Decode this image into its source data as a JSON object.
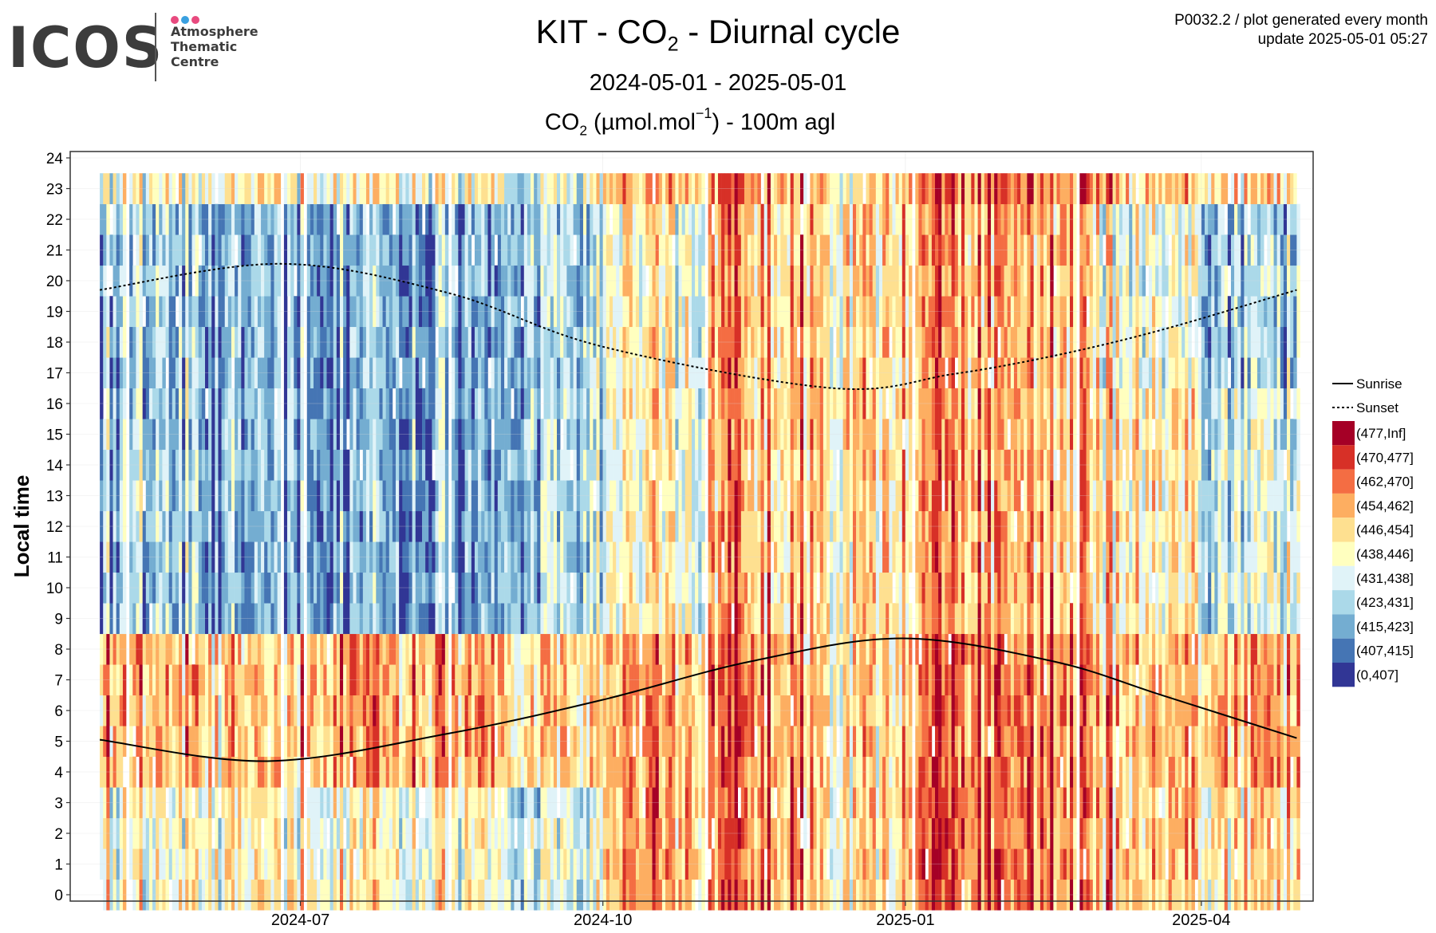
{
  "logo": {
    "word": "ICOS",
    "line1": "Atmosphere",
    "line2": "Thematic",
    "line3": "Centre",
    "dot_colors": [
      "#e84a7f",
      "#3aa0e0",
      "#e84a7f"
    ]
  },
  "header": {
    "title_pre": "KIT - CO",
    "title_sub": "2",
    "title_post": " - Diurnal cycle",
    "date_range": "2024-05-01 - 2025-05-01",
    "unit_pre": "CO",
    "unit_sub": "2",
    "unit_mid": " (µmol.mol",
    "unit_sup": "−1",
    "unit_post": ") - 100m agl"
  },
  "corner": {
    "line1": "P0032.2 / plot generated every month",
    "line2": "update  2025-05-01 05:27"
  },
  "chart_data": {
    "type": "heatmap",
    "xlabel": "",
    "ylabel": "Local time",
    "x_range": [
      "2024-04-22",
      "2025-05-05"
    ],
    "data_date_range": [
      "2024-05-01",
      "2025-04-30"
    ],
    "ylim": [
      0,
      24
    ],
    "x_ticks": [
      {
        "date": "2024-07-01",
        "label": "2024-07"
      },
      {
        "date": "2024-10-01",
        "label": "2024-10"
      },
      {
        "date": "2025-01-01",
        "label": "2025-01"
      },
      {
        "date": "2025-04-01",
        "label": "2025-04"
      }
    ],
    "y_ticks": [
      "0",
      "1",
      "2",
      "3",
      "4",
      "5",
      "6",
      "7",
      "8",
      "9",
      "10",
      "11",
      "12",
      "13",
      "14",
      "15",
      "16",
      "17",
      "18",
      "19",
      "20",
      "21",
      "22",
      "23",
      "24"
    ],
    "grid": true,
    "legend_position": "right",
    "legend_lines": [
      {
        "label": "Sunrise",
        "style": "solid"
      },
      {
        "label": "Sunset",
        "style": "dashed"
      }
    ],
    "color_bins": [
      {
        "label": "(477,Inf]",
        "color": "#a50026"
      },
      {
        "label": "(470,477]",
        "color": "#d73027"
      },
      {
        "label": "(462,470]",
        "color": "#f46d43"
      },
      {
        "label": "(454,462]",
        "color": "#fdae61"
      },
      {
        "label": "(446,454]",
        "color": "#fee090"
      },
      {
        "label": "(438,446]",
        "color": "#ffffbf"
      },
      {
        "label": "(431,438]",
        "color": "#e0f3f8"
      },
      {
        "label": "(423,431]",
        "color": "#abd9e9"
      },
      {
        "label": "(415,423]",
        "color": "#74add1"
      },
      {
        "label": "(407,415]",
        "color": "#4575b4"
      },
      {
        "label": "(0,407]",
        "color": "#313695"
      }
    ],
    "monthly_level_by_hour_band": [
      {
        "month": "2024-05",
        "night": 5,
        "morning": 3,
        "midday": 7,
        "evening": 7
      },
      {
        "month": "2024-06",
        "night": 5,
        "morning": 4,
        "midday": 8,
        "evening": 8
      },
      {
        "month": "2024-07",
        "night": 5,
        "morning": 3,
        "midday": 8,
        "evening": 8
      },
      {
        "month": "2024-08",
        "night": 5,
        "morning": 3,
        "midday": 8,
        "evening": 8
      },
      {
        "month": "2024-09",
        "night": 6,
        "morning": 4,
        "midday": 7,
        "evening": 7
      },
      {
        "month": "2024-10",
        "night": 3,
        "morning": 3,
        "midday": 5,
        "evening": 5
      },
      {
        "month": "2024-11",
        "night": 2,
        "morning": 2,
        "midday": 3,
        "evening": 3
      },
      {
        "month": "2024-12",
        "night": 4,
        "morning": 4,
        "midday": 4,
        "evening": 4
      },
      {
        "month": "2025-01",
        "night": 2,
        "morning": 2,
        "midday": 3,
        "evening": 3
      },
      {
        "month": "2025-02",
        "night": 2,
        "morning": 2,
        "midday": 3,
        "evening": 3
      },
      {
        "month": "2025-03",
        "night": 3,
        "morning": 3,
        "midday": 4,
        "evening": 5
      },
      {
        "month": "2025-04",
        "night": 4,
        "morning": 3,
        "midday": 6,
        "evening": 7
      }
    ],
    "sunrise": [
      {
        "date": "2024-05-01",
        "hour": 5.05
      },
      {
        "date": "2024-06-21",
        "hour": 4.35
      },
      {
        "date": "2024-08-15",
        "hour": 5.25
      },
      {
        "date": "2024-10-01",
        "hour": 6.35
      },
      {
        "date": "2024-11-15",
        "hour": 7.6
      },
      {
        "date": "2024-12-31",
        "hour": 8.35
      },
      {
        "date": "2025-02-15",
        "hour": 7.6
      },
      {
        "date": "2025-03-20",
        "hour": 6.5
      },
      {
        "date": "2025-04-30",
        "hour": 5.1
      }
    ],
    "sunset": [
      {
        "date": "2024-05-01",
        "hour": 19.7
      },
      {
        "date": "2024-06-25",
        "hour": 20.55
      },
      {
        "date": "2024-08-15",
        "hour": 19.6
      },
      {
        "date": "2024-10-01",
        "hour": 17.85
      },
      {
        "date": "2024-12-10",
        "hour": 16.5
      },
      {
        "date": "2025-01-15",
        "hour": 16.95
      },
      {
        "date": "2025-02-15",
        "hour": 17.55
      },
      {
        "date": "2025-03-20",
        "hour": 18.4
      },
      {
        "date": "2025-04-30",
        "hour": 19.7
      }
    ]
  }
}
